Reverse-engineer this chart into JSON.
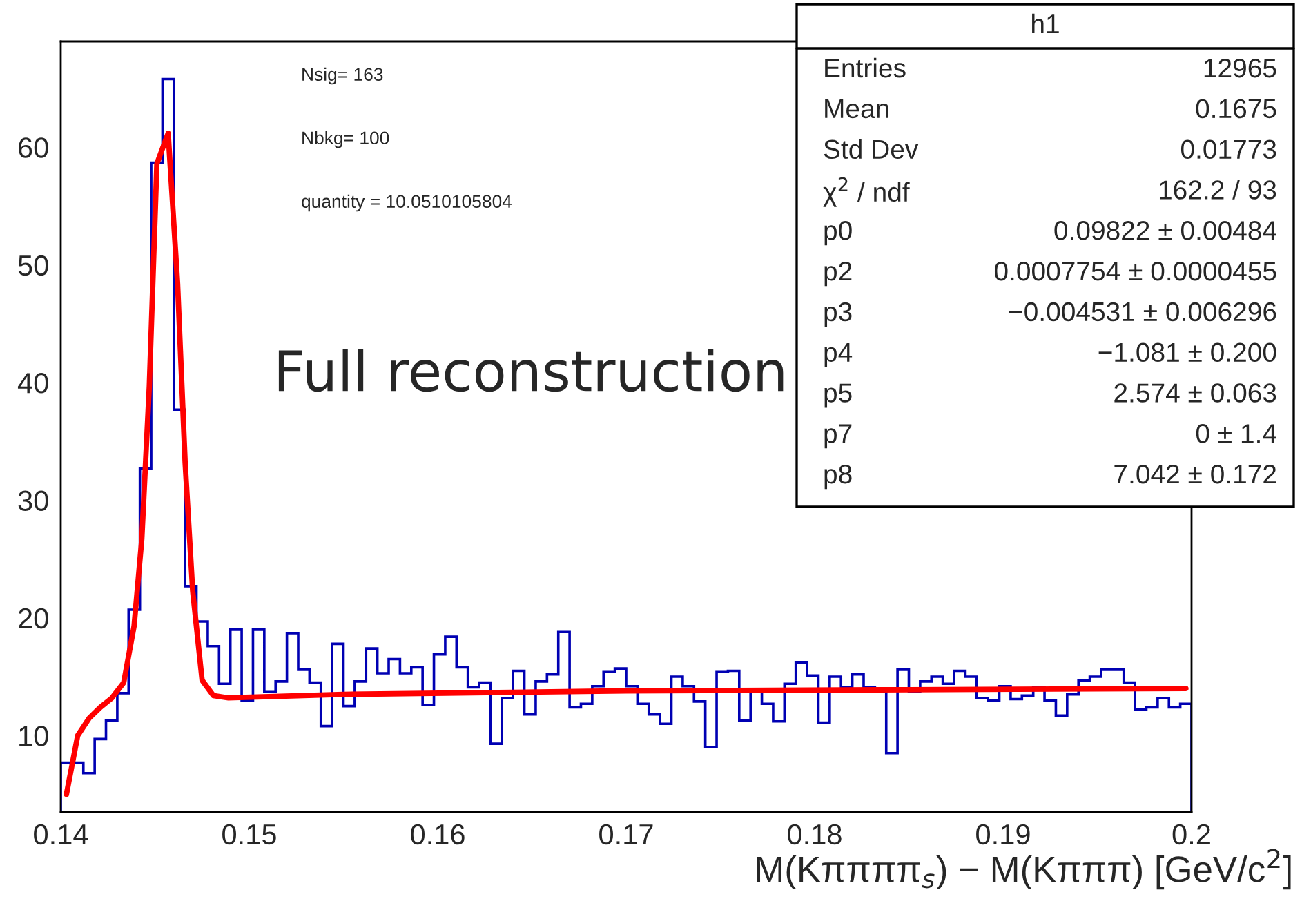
{
  "chart_data": {
    "type": "histogram",
    "xlabel": "M(Kππππ$_{s}$) − M(Kπππ) [GeV/c$^{2}$]",
    "bins": [
      0.14,
      0.1406,
      0.1412,
      0.1418,
      0.1424,
      0.143,
      0.1436,
      0.1442,
      0.1448,
      0.1454,
      0.146,
      0.1466,
      0.1472,
      0.1478,
      0.1484,
      0.149,
      0.1496,
      0.1502,
      0.1508,
      0.1514,
      0.152,
      0.1526,
      0.1532,
      0.1538,
      0.1544,
      0.155,
      0.1556,
      0.1562,
      0.1568,
      0.1574,
      0.158,
      0.1586,
      0.1592,
      0.1598,
      0.1604,
      0.161,
      0.1616,
      0.1622,
      0.1628,
      0.1634,
      0.164,
      0.1646,
      0.1652,
      0.1658,
      0.1664,
      0.167,
      0.1676,
      0.1682,
      0.1688,
      0.1694,
      0.17,
      0.1706,
      0.1712,
      0.1718,
      0.1724,
      0.173,
      0.1736,
      0.1742,
      0.1748,
      0.1754,
      0.176,
      0.1766,
      0.1772,
      0.1778,
      0.1784,
      0.179,
      0.1796,
      0.1802,
      0.1808,
      0.1814,
      0.182,
      0.1826,
      0.1832,
      0.1838,
      0.1844,
      0.185,
      0.1856,
      0.1862,
      0.1868,
      0.1874,
      0.188,
      0.1886,
      0.1892,
      0.1898,
      0.1904,
      0.191,
      0.1916,
      0.1922,
      0.1928,
      0.1934,
      0.194,
      0.1946,
      0.1952,
      0.1958,
      0.1964,
      0.197,
      0.1976,
      0.1982,
      0.1988,
      0.1994,
      0.2
    ],
    "series": [
      {
        "color": "#0000b3",
        "values": [
          7.7,
          7.7,
          6.8,
          9.7,
          11.3,
          13.6,
          20.7,
          32.7,
          58.7,
          65.8,
          37.7,
          22.7,
          19.7,
          17.6,
          14.4,
          19.0,
          13.0,
          19.0,
          13.7,
          14.6,
          18.7,
          15.6,
          14.5,
          10.8,
          17.8,
          12.5,
          14.6,
          17.4,
          15.3,
          16.5,
          15.3,
          15.8,
          12.6,
          16.9,
          18.4,
          15.8,
          14.1,
          14.5,
          9.3,
          13.2,
          15.5,
          11.8,
          14.6,
          15.2,
          18.8,
          12.4,
          12.7,
          14.2,
          15.4,
          15.7,
          14.2,
          12.7,
          11.8,
          11.0,
          15.0,
          14.2,
          12.9,
          9.0,
          15.4,
          15.5,
          11.3,
          13.7,
          12.7,
          11.2,
          14.4,
          16.2,
          15.1,
          11.1,
          15.0,
          14.1,
          15.2,
          14.1,
          13.7,
          8.5,
          15.6,
          13.7,
          14.6,
          15.0,
          14.4,
          15.5,
          15.0,
          13.2,
          13.0,
          14.2,
          13.1,
          13.4,
          14.1,
          13.0,
          11.7,
          13.5,
          14.7,
          15.0,
          15.6,
          15.6,
          14.5,
          12.2,
          12.4,
          13.2,
          12.4,
          12.7
        ]
      },
      {
        "type": "line",
        "color": "#ff0000",
        "x": [
          0.1403,
          0.1409,
          0.14152,
          0.1421,
          0.14272,
          0.14334,
          0.14389,
          0.1443,
          0.1447,
          0.1451,
          0.1457,
          0.1462,
          0.1466,
          0.147,
          0.1475,
          0.1481,
          0.1489,
          0.155,
          0.17,
          0.185,
          0.1997
        ],
        "values": [
          5.0,
          10.0,
          11.5,
          12.4,
          13.2,
          14.5,
          19.3,
          26.7,
          39.7,
          58.6,
          61.2,
          48.4,
          33.2,
          22.3,
          14.7,
          13.4,
          13.2,
          13.5,
          13.8,
          13.9,
          14.0
        ]
      }
    ],
    "xlim": [
      0.14,
      0.2
    ],
    "xticks": [
      0.14,
      0.15,
      0.16,
      0.17,
      0.18,
      0.19,
      0.2
    ],
    "ylim": [
      3.5,
      69
    ],
    "yticks": [
      10,
      20,
      30,
      40,
      50,
      60
    ],
    "grid": false,
    "legend": false,
    "annotations": [
      "Nsig= 163",
      "Nbkg= 100",
      "quantity = 10.0510105804",
      "Full reconstruction",
      "h1",
      "Entries",
      "12965",
      "Mean",
      "0.1675",
      "Std Dev",
      "0.01773",
      "χ$^{2}$ / ndf",
      "162.2 / 93",
      "p0",
      "0.09822 ± 0.00484",
      "p2",
      "0.0007754 ± 0.0000455",
      "p3",
      "−0.004531 ± 0.006296",
      "p4",
      "−1.081 ± 0.200",
      "p5",
      "2.574 ± 0.063",
      "p7",
      "0 ± 1.4",
      "p8",
      "7.042 ± 0.172"
    ]
  }
}
